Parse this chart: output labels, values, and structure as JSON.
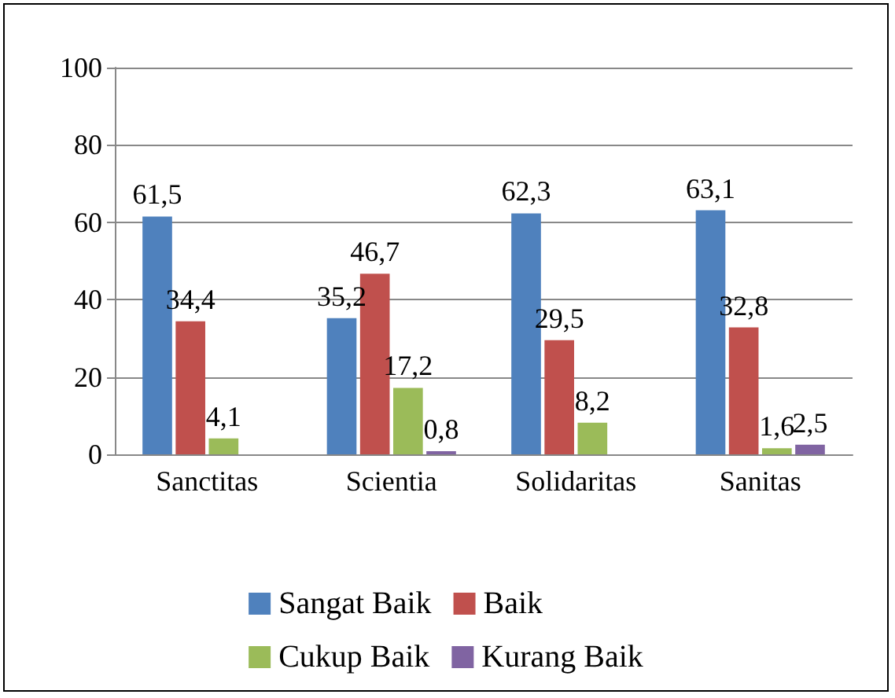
{
  "chart_data": {
    "type": "bar",
    "categories": [
      "Sanctitas",
      "Scientia",
      "Solidaritas",
      "Sanitas"
    ],
    "series": [
      {
        "name": "Sangat Baik",
        "color": "#4f81bd",
        "values": [
          61.5,
          35.2,
          62.3,
          63.1
        ],
        "value_labels": [
          "61,5",
          "35,2",
          "62,3",
          "63,1"
        ]
      },
      {
        "name": "Baik",
        "color": "#c0504d",
        "values": [
          34.4,
          46.7,
          29.5,
          32.8
        ],
        "value_labels": [
          "34,4",
          "46,7",
          "29,5",
          "32,8"
        ]
      },
      {
        "name": "Cukup Baik",
        "color": "#9bbb59",
        "values": [
          4.1,
          17.2,
          8.2,
          1.6
        ],
        "value_labels": [
          "4,1",
          "17,2",
          "8,2",
          "1,6"
        ]
      },
      {
        "name": "Kurang Baik",
        "color": "#8064a2",
        "values": [
          null,
          0.8,
          null,
          2.5
        ],
        "value_labels": [
          null,
          "0,8",
          null,
          "2,5"
        ]
      }
    ],
    "ylim": [
      0,
      100
    ],
    "yticks": [
      0,
      20,
      40,
      60,
      80,
      100
    ],
    "grid": "y",
    "legend": "bottom"
  }
}
